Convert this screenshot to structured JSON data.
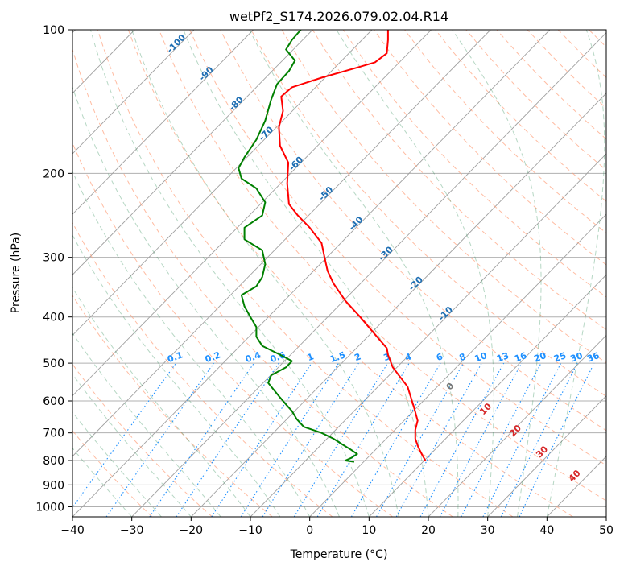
{
  "chart_data": {
    "type": "line",
    "title": "wetPf2_S174.2026.079.02.04.R14",
    "xlabel": "Temperature (°C)",
    "ylabel": "Pressure (hPa)",
    "xlim": [
      -40,
      50
    ],
    "ylim": [
      1050,
      100
    ],
    "y_scale": "log",
    "grid": true,
    "x_ticks": [
      -40,
      -30,
      -20,
      -10,
      0,
      10,
      20,
      30,
      40,
      50
    ],
    "y_ticks": [
      100,
      200,
      300,
      400,
      500,
      600,
      700,
      800,
      900,
      1000
    ],
    "x_tick_labels": [
      "−40",
      "−30",
      "−20",
      "−10",
      "0",
      "10",
      "20",
      "30",
      "40",
      "50"
    ],
    "y_tick_labels": [
      "100",
      "200",
      "300",
      "400",
      "500",
      "600",
      "700",
      "800",
      "900",
      "1000"
    ],
    "series": [
      {
        "color": "#ff0000",
        "points": [
          [
            19.5,
            800
          ],
          [
            19,
            780
          ],
          [
            18.3,
            750
          ],
          [
            17.8,
            720
          ],
          [
            17.8,
            690
          ],
          [
            18.2,
            660
          ],
          [
            17.6,
            620
          ],
          [
            16.5,
            560
          ],
          [
            14,
            510
          ],
          [
            13.2,
            480
          ],
          [
            13,
            465
          ],
          [
            11,
            435
          ],
          [
            8.5,
            400
          ],
          [
            6,
            370
          ],
          [
            4,
            340
          ],
          [
            3,
            320
          ],
          [
            2.5,
            300
          ],
          [
            2,
            280
          ],
          [
            0,
            260
          ],
          [
            -2,
            245
          ],
          [
            -3.5,
            232
          ],
          [
            -3.8,
            210
          ],
          [
            -3.6,
            190
          ],
          [
            -5,
            175
          ],
          [
            -5.2,
            160
          ],
          [
            -4.5,
            148
          ],
          [
            -4.8,
            138
          ],
          [
            -3,
            132
          ],
          [
            2,
            126
          ],
          [
            8,
            120
          ],
          [
            11,
            117
          ],
          [
            13,
            112
          ],
          [
            13.2,
            105
          ],
          [
            13.2,
            100
          ]
        ]
      },
      {
        "color": "#008000",
        "points": [
          [
            7.5,
            805
          ],
          [
            6,
            800
          ],
          [
            7,
            790
          ],
          [
            8,
            775
          ],
          [
            7,
            760
          ],
          [
            5.5,
            740
          ],
          [
            4,
            720
          ],
          [
            2,
            700
          ],
          [
            -1,
            680
          ],
          [
            -2.2,
            655
          ],
          [
            -3,
            630
          ],
          [
            -4,
            610
          ],
          [
            -5,
            590
          ],
          [
            -6,
            570
          ],
          [
            -7,
            550
          ],
          [
            -6.5,
            530
          ],
          [
            -4,
            510
          ],
          [
            -3,
            495
          ],
          [
            -5,
            480
          ],
          [
            -8,
            460
          ],
          [
            -9,
            440
          ],
          [
            -9,
            420
          ],
          [
            -10,
            400
          ],
          [
            -11,
            380
          ],
          [
            -11.5,
            360
          ],
          [
            -9,
            345
          ],
          [
            -8,
            330
          ],
          [
            -7.5,
            310
          ],
          [
            -8,
            290
          ],
          [
            -11,
            275
          ],
          [
            -11,
            260
          ],
          [
            -8,
            245
          ],
          [
            -7.5,
            230
          ],
          [
            -9,
            215
          ],
          [
            -11.5,
            205
          ],
          [
            -12,
            195
          ],
          [
            -11,
            185
          ],
          [
            -9,
            170
          ],
          [
            -7.5,
            155
          ],
          [
            -6.5,
            140
          ],
          [
            -5.5,
            130
          ],
          [
            -3.5,
            122
          ],
          [
            -2.5,
            116
          ],
          [
            -4,
            110
          ],
          [
            -3,
            105
          ],
          [
            -1.5,
            100
          ]
        ]
      }
    ],
    "dry_adiabat_labels": [
      "-100",
      "-90",
      "-80",
      "-70",
      "-60",
      "-50",
      "-40",
      "-30",
      "-20",
      "-10"
    ],
    "mixing_ratio_labels": [
      "0.1",
      "0.2",
      "0.4",
      "0.6",
      "1",
      "1.5",
      "2",
      "3",
      "4",
      "6",
      "8",
      "10",
      "13",
      "16",
      "20",
      "25",
      "30",
      "36"
    ],
    "moist_adiabat_labels": [
      "0",
      "10",
      "20",
      "30",
      "40"
    ],
    "colors": {
      "temperature": "#ff0000",
      "dewpoint": "#008000",
      "dry_adiabat": "#ffa07a",
      "moist_adiabat": "#2e8b57",
      "isotherm": "#666666",
      "mixing_ratio": "#1e90ff",
      "dry_adiabat_label": "#1f6fb3",
      "mixing_label": "#1e90ff",
      "moist_label": "#d62728"
    }
  }
}
